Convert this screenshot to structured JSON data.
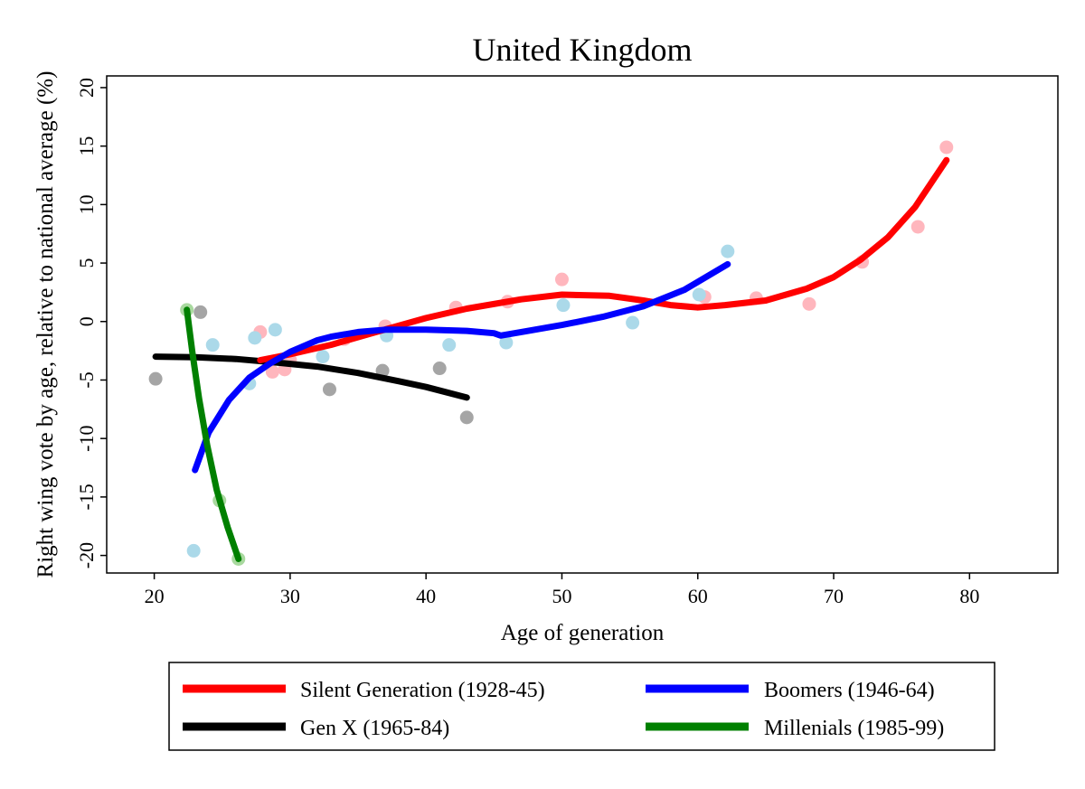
{
  "chart_data": {
    "type": "line",
    "title": "United Kingdom",
    "xlabel": "Age of generation",
    "ylabel": "Right wing vote by age, relative to national average (%)",
    "xlim": [
      16.5,
      86.5
    ],
    "ylim": [
      -21.5,
      21
    ],
    "xticks": [
      20,
      30,
      40,
      50,
      60,
      70,
      80
    ],
    "yticks": [
      -20,
      -15,
      -10,
      -5,
      0,
      5,
      10,
      15,
      20
    ],
    "grid": false,
    "legend_position": "bottom",
    "series": [
      {
        "name": "Silent Generation (1928-45)",
        "line_color": "#ff0000",
        "point_color": "#ffb6bd",
        "points": [
          [
            27.8,
            -0.9
          ],
          [
            28.7,
            -4.3
          ],
          [
            29.6,
            -4.1
          ],
          [
            30.0,
            -3.3
          ],
          [
            34.0,
            -1.5
          ],
          [
            37.0,
            -0.4
          ],
          [
            42.2,
            1.2
          ],
          [
            46.0,
            1.7
          ],
          [
            50.0,
            3.6
          ],
          [
            60.5,
            2.1
          ],
          [
            64.3,
            2.0
          ],
          [
            68.2,
            1.5
          ],
          [
            72.1,
            5.1
          ],
          [
            76.2,
            8.1
          ],
          [
            78.3,
            14.9
          ]
        ],
        "fit": [
          [
            27.8,
            -3.3
          ],
          [
            30,
            -2.8
          ],
          [
            33,
            -2.0
          ],
          [
            36,
            -1.0
          ],
          [
            40,
            0.3
          ],
          [
            43,
            1.1
          ],
          [
            47,
            1.9
          ],
          [
            50,
            2.3
          ],
          [
            53.5,
            2.2
          ],
          [
            56,
            1.8
          ],
          [
            58,
            1.4
          ],
          [
            60,
            1.2
          ],
          [
            62,
            1.4
          ],
          [
            65,
            1.8
          ],
          [
            68,
            2.8
          ],
          [
            70,
            3.8
          ],
          [
            72,
            5.3
          ],
          [
            74,
            7.2
          ],
          [
            76,
            9.8
          ],
          [
            78.3,
            13.8
          ]
        ]
      },
      {
        "name": "Boomers (1946-64)",
        "line_color": "#0000ff",
        "point_color": "#abd9e9",
        "points": [
          [
            22.9,
            -19.6
          ],
          [
            24.3,
            -2.0
          ],
          [
            27.0,
            -5.3
          ],
          [
            27.4,
            -1.4
          ],
          [
            28.9,
            -0.7
          ],
          [
            32.4,
            -3.0
          ],
          [
            37.1,
            -1.2
          ],
          [
            41.7,
            -2.0
          ],
          [
            45.9,
            -1.8
          ],
          [
            50.1,
            1.4
          ],
          [
            55.2,
            -0.1
          ],
          [
            60.1,
            2.3
          ],
          [
            62.2,
            6.0
          ]
        ],
        "fit": [
          [
            23.0,
            -12.7
          ],
          [
            24,
            -9.5
          ],
          [
            25.5,
            -6.7
          ],
          [
            27,
            -4.8
          ],
          [
            28.5,
            -3.6
          ],
          [
            30,
            -2.6
          ],
          [
            32,
            -1.6
          ],
          [
            33,
            -1.3
          ],
          [
            35,
            -0.9
          ],
          [
            37,
            -0.7
          ],
          [
            40,
            -0.7
          ],
          [
            43,
            -0.8
          ],
          [
            45,
            -1.0
          ],
          [
            45.5,
            -1.2
          ],
          [
            47,
            -0.9
          ],
          [
            50,
            -0.3
          ],
          [
            53,
            0.4
          ],
          [
            56,
            1.3
          ],
          [
            59,
            2.7
          ],
          [
            62.2,
            4.9
          ]
        ]
      },
      {
        "name": "Gen X (1965-84)",
        "line_color": "#000000",
        "point_color": "#a5a5a5",
        "points": [
          [
            20.1,
            -4.9
          ],
          [
            23.4,
            0.8
          ],
          [
            32.9,
            -5.8
          ],
          [
            36.8,
            -4.2
          ],
          [
            41.0,
            -4.0
          ],
          [
            43.0,
            -8.2
          ]
        ],
        "fit": [
          [
            20.1,
            -3.0
          ],
          [
            23,
            -3.05
          ],
          [
            26,
            -3.2
          ],
          [
            29,
            -3.5
          ],
          [
            32,
            -3.85
          ],
          [
            35,
            -4.4
          ],
          [
            38,
            -5.1
          ],
          [
            40,
            -5.6
          ],
          [
            43.0,
            -6.5
          ]
        ]
      },
      {
        "name": "Millenials (1985-99)",
        "line_color": "#008000",
        "point_color": "#a9d99f",
        "points": [
          [
            22.4,
            1.0
          ],
          [
            24.8,
            -15.3
          ],
          [
            26.2,
            -20.3
          ]
        ],
        "fit": [
          [
            22.4,
            1.0
          ],
          [
            22.8,
            -2.6
          ],
          [
            23.3,
            -6.6
          ],
          [
            23.9,
            -10.6
          ],
          [
            24.6,
            -14.4
          ],
          [
            25.4,
            -17.6
          ],
          [
            26.2,
            -20.3
          ]
        ]
      }
    ]
  }
}
